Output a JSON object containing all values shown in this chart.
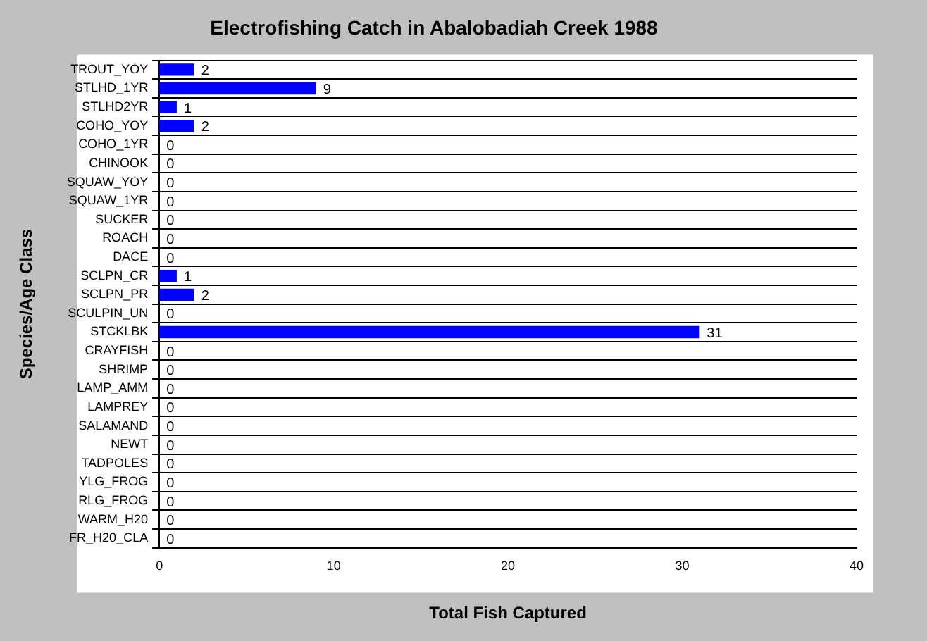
{
  "chart_data": {
    "type": "bar",
    "orientation": "horizontal",
    "title": "Electrofishing Catch in Abalobadiah Creek 1988",
    "xlabel": "Total Fish Captured",
    "ylabel": "Species/Age Class",
    "categories": [
      "TROUT_YOY",
      "STLHD_1YR",
      "STLHD2YR",
      "COHO_YOY",
      "COHO_1YR",
      "CHINOOK",
      "SQUAW_YOY",
      "SQUAW_1YR",
      "SUCKER",
      "ROACH",
      "DACE",
      "SCLPN_CR",
      "SCLPN_PR",
      "SCULPIN_UN",
      "STCKLBK",
      "CRAYFISH",
      "SHRIMP",
      "LAMP_AMM",
      "LAMPREY",
      "SALAMAND",
      "NEWT",
      "TADPOLES",
      "YLG_FROG",
      "RLG_FROG",
      "WARM_H20",
      "FR_H20_CLA"
    ],
    "values": [
      2,
      9,
      1,
      2,
      0,
      0,
      0,
      0,
      0,
      0,
      0,
      1,
      2,
      0,
      31,
      0,
      0,
      0,
      0,
      0,
      0,
      0,
      0,
      0,
      0,
      0
    ],
    "color": "#0000ff",
    "xlim": [
      0,
      40
    ],
    "xticks": [
      0,
      10,
      20,
      30,
      40
    ],
    "grid": "y",
    "data_labels": true
  }
}
